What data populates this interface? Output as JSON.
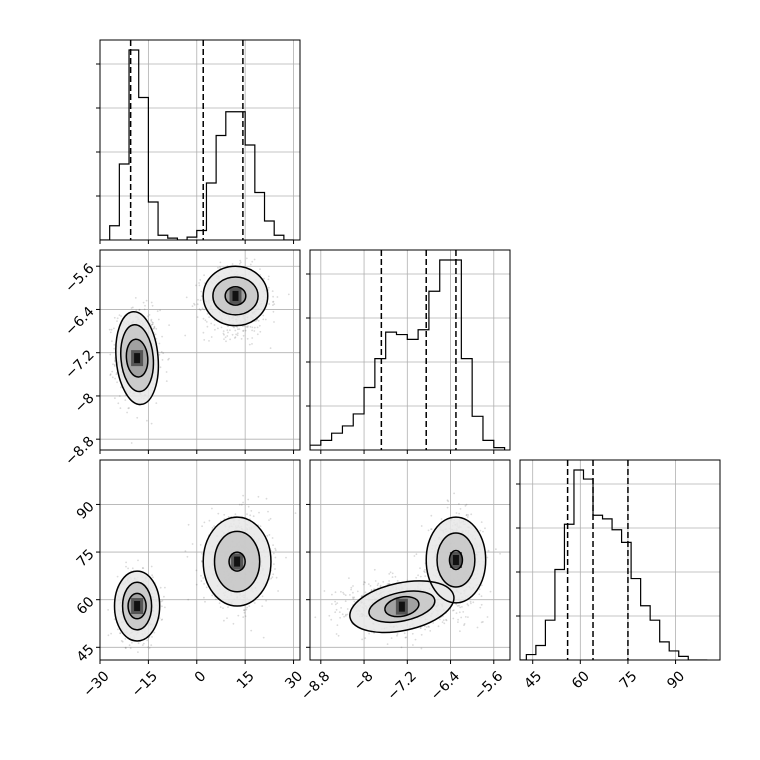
{
  "chart_data": {
    "type": "corner",
    "parameters": [
      {
        "range": [
          -30,
          32
        ],
        "ticks": [
          -30,
          -15,
          0,
          15,
          30
        ]
      },
      {
        "range": [
          -9.0,
          -5.3
        ],
        "ticks": [
          -8.8,
          -8.0,
          -7.2,
          -6.4,
          -5.6
        ]
      },
      {
        "range": [
          41,
          104
        ],
        "ticks": [
          45,
          60,
          75,
          90
        ]
      }
    ],
    "quantiles": [
      [
        -20.5,
        2.0,
        14.3
      ],
      [
        -7.68,
        -6.85,
        -6.3
      ],
      [
        56.0,
        64.0,
        75.0
      ]
    ],
    "histograms": [
      {
        "bin_edges": [
          -30,
          -27,
          -24,
          -21,
          -18,
          -15,
          -12,
          -9,
          -6,
          -3,
          0,
          3,
          6,
          9,
          12,
          15,
          18,
          21,
          24,
          27,
          30
        ],
        "counts": [
          0,
          15,
          80,
          200,
          150,
          40,
          5,
          2,
          0,
          3,
          10,
          60,
          110,
          135,
          135,
          100,
          50,
          20,
          5,
          0
        ]
      },
      {
        "bin_edges": [
          -9.0,
          -8.8,
          -8.6,
          -8.4,
          -8.2,
          -8.0,
          -7.8,
          -7.6,
          -7.4,
          -7.2,
          -7.0,
          -6.8,
          -6.6,
          -6.4,
          -6.2,
          -6.0,
          -5.8,
          -5.6,
          -5.4
        ],
        "counts": [
          2,
          4,
          7,
          10,
          15,
          26,
          38,
          49,
          48,
          46,
          50,
          66,
          79,
          79,
          38,
          14,
          4,
          1
        ]
      },
      {
        "bin_edges": [
          40,
          43,
          46,
          49,
          52,
          55,
          58,
          61,
          64,
          67,
          70,
          73,
          76,
          79,
          82,
          85,
          88,
          91,
          94,
          97,
          100
        ],
        "counts": [
          0,
          3,
          8,
          22,
          50,
          75,
          105,
          100,
          80,
          78,
          72,
          65,
          45,
          30,
          22,
          10,
          5,
          2,
          0,
          0
        ]
      }
    ],
    "modes": [
      {
        "x": -18.5,
        "y": -7.25,
        "z": 58.5
      },
      {
        "x": 12.5,
        "y": -6.3,
        "z": 71.0
      }
    ],
    "contours": [
      {
        "panel": "x-y",
        "levels": [
          {
            "cx": -18.5,
            "cy": -7.3,
            "rx": 3.3,
            "ry": 0.35,
            "angle": -5
          },
          {
            "cx": -18.5,
            "cy": -7.3,
            "rx": 5.0,
            "ry": 0.62,
            "angle": -5
          },
          {
            "cx": -18.5,
            "cy": -7.3,
            "rx": 6.5,
            "ry": 0.86,
            "angle": -5
          },
          {
            "cx": 12.0,
            "cy": -6.15,
            "rx": 3.2,
            "ry": 0.17,
            "angle": 0
          },
          {
            "cx": 12.0,
            "cy": -6.15,
            "rx": 7.0,
            "ry": 0.35,
            "angle": 0
          },
          {
            "cx": 12.0,
            "cy": -6.15,
            "rx": 10.0,
            "ry": 0.55,
            "angle": 0
          }
        ]
      },
      {
        "panel": "x-z",
        "levels": [
          {
            "cx": -18.5,
            "cy": 58.0,
            "rx": 2.8,
            "ry": 4.0,
            "angle": 0
          },
          {
            "cx": -18.5,
            "cy": 58.0,
            "rx": 4.5,
            "ry": 7.5,
            "angle": 0
          },
          {
            "cx": -18.5,
            "cy": 58.0,
            "rx": 7.0,
            "ry": 11.0,
            "angle": 0
          },
          {
            "cx": 12.5,
            "cy": 72.0,
            "rx": 2.5,
            "ry": 3.0,
            "angle": 0
          },
          {
            "cx": 12.5,
            "cy": 72.0,
            "rx": 7.0,
            "ry": 9.5,
            "angle": 0
          },
          {
            "cx": 12.5,
            "cy": 72.0,
            "rx": 10.5,
            "ry": 14.0,
            "angle": 0
          }
        ]
      },
      {
        "panel": "y-z",
        "levels": [
          {
            "cx": -7.3,
            "cy": 57.8,
            "rx": 0.32,
            "ry": 3.0,
            "angle": -12
          },
          {
            "cx": -7.3,
            "cy": 57.8,
            "rx": 0.62,
            "ry": 4.5,
            "angle": -12
          },
          {
            "cx": -7.3,
            "cy": 57.8,
            "rx": 0.98,
            "ry": 7.5,
            "angle": -12
          },
          {
            "cx": -6.3,
            "cy": 72.5,
            "rx": 0.12,
            "ry": 3.0,
            "angle": 0
          },
          {
            "cx": -6.3,
            "cy": 72.5,
            "rx": 0.35,
            "ry": 8.5,
            "angle": 0
          },
          {
            "cx": -6.3,
            "cy": 72.5,
            "rx": 0.55,
            "ry": 13.5,
            "angle": 0
          }
        ]
      }
    ],
    "density": [
      {
        "panel": "x-y",
        "cx": -18.5,
        "cy": -7.25,
        "sx": 3.3,
        "sy": 0.42,
        "mode": 0
      },
      {
        "panel": "x-y",
        "cx": 12.5,
        "cy": -6.25,
        "sx": 5.0,
        "sy": 0.3,
        "mode": 1
      },
      {
        "panel": "x-z",
        "cx": -18.5,
        "cy": 58.0,
        "sx": 3.0,
        "sy": 5.0,
        "mode": 0
      },
      {
        "panel": "x-z",
        "cx": 12.5,
        "cy": 72.0,
        "sx": 5.0,
        "sy": 7.0,
        "mode": 1
      },
      {
        "panel": "y-z",
        "cx": -7.4,
        "cy": 58.0,
        "sx": 0.45,
        "sy": 3.8,
        "mode": 0
      },
      {
        "panel": "y-z",
        "cx": -6.3,
        "cy": 72.0,
        "sx": 0.25,
        "sy": 7.0,
        "mode": 1
      }
    ],
    "grid": true,
    "legend": "none"
  }
}
